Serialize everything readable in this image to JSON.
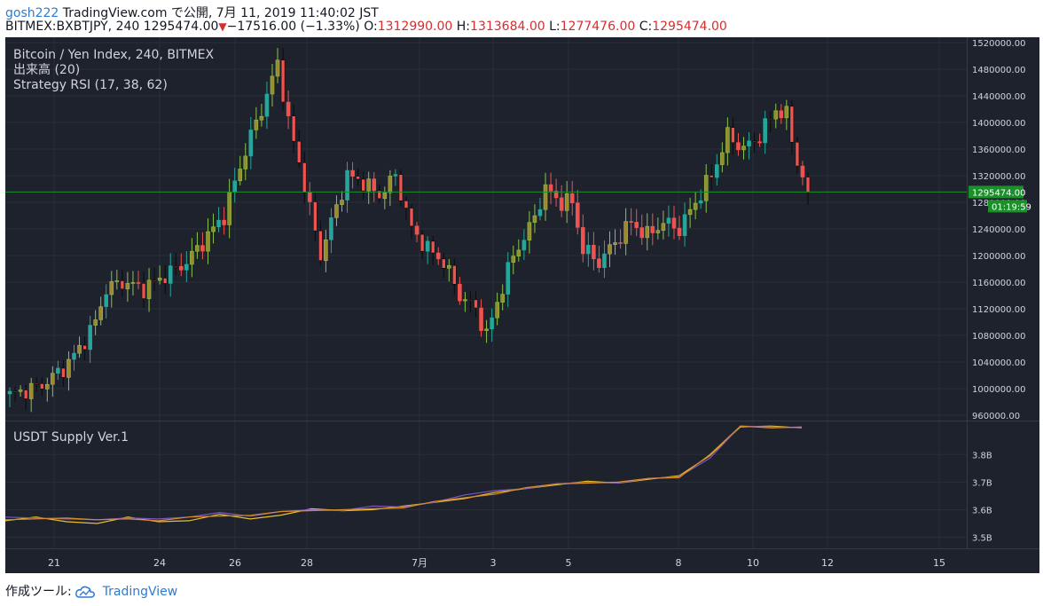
{
  "header": {
    "user": "gosh222",
    "publish_text": "TradingView.com で公開, 7月 11, 2019 11:40:02 JST",
    "symbol": "BITMEX:BXBTJPY, 240",
    "last": "1295474.00",
    "change": "−17516.00 (−1.33%)",
    "o_label": "O:",
    "o": "1312990.00",
    "h_label": "H:",
    "h": "1313684.00",
    "l_label": "L:",
    "l": "1277476.00",
    "c_label": "C:",
    "c": "1295474.00"
  },
  "legend": {
    "main": "Bitcoin / Yen Index, 240, BITMEX",
    "volume": "出来高 (20)",
    "strategy": "Strategy RSI (17, 38, 62)",
    "sub": "USDT Supply Ver.1"
  },
  "price_badge": "1295474.00",
  "countdown_badge": "01:19:59",
  "footer": {
    "made_with": "作成ツール:",
    "brand": "TradingView"
  },
  "colors": {
    "background": "#1e222d",
    "up": "#26a69a",
    "down": "#ef5350",
    "up_rsi": "#8bc34a",
    "grid": "#2a2e39",
    "axis_text": "#d1d4dc",
    "price_line": "#1b8f2a",
    "supply_1": "#e8c02e",
    "supply_2": "#7e57c2",
    "supply_3": "#d98b2b"
  },
  "chart_data": [
    {
      "type": "candlestick",
      "title": "Bitcoin / Yen Index, 240, BITMEX",
      "y_ticks": [
        960000,
        1000000,
        1040000,
        1080000,
        1120000,
        1160000,
        1200000,
        1240000,
        1280000,
        1320000,
        1360000,
        1400000,
        1440000,
        1480000,
        1520000
      ],
      "ylim": [
        952000,
        1528000
      ],
      "x_tick_labels": [
        "21",
        "24",
        "26",
        "28",
        "7月",
        "3",
        "5",
        "8",
        "10",
        "12",
        "15"
      ],
      "grid": true,
      "last_price": 1295474,
      "approx_close_path": [
        [
          0,
          990000
        ],
        [
          6,
          1005000
        ],
        [
          10,
          1030000
        ],
        [
          13,
          1060000
        ],
        [
          16,
          1100000
        ],
        [
          18,
          1150000
        ],
        [
          21,
          1160000
        ],
        [
          25,
          1150000
        ],
        [
          29,
          1170000
        ],
        [
          33,
          1190000
        ],
        [
          37,
          1230000
        ],
        [
          40,
          1260000
        ],
        [
          42,
          1310000
        ],
        [
          45,
          1380000
        ],
        [
          48,
          1440000
        ],
        [
          50,
          1490000
        ],
        [
          52,
          1400000
        ],
        [
          54,
          1340000
        ],
        [
          56,
          1270000
        ],
        [
          58,
          1200000
        ],
        [
          60,
          1250000
        ],
        [
          63,
          1320000
        ],
        [
          66,
          1310000
        ],
        [
          69,
          1290000
        ],
        [
          72,
          1320000
        ],
        [
          75,
          1240000
        ],
        [
          78,
          1210000
        ],
        [
          81,
          1190000
        ],
        [
          84,
          1140000
        ],
        [
          87,
          1120000
        ],
        [
          89,
          1080000
        ],
        [
          91,
          1130000
        ],
        [
          94,
          1200000
        ],
        [
          97,
          1240000
        ],
        [
          100,
          1300000
        ],
        [
          103,
          1280000
        ],
        [
          105,
          1280000
        ],
        [
          107,
          1210000
        ],
        [
          110,
          1190000
        ],
        [
          113,
          1220000
        ],
        [
          116,
          1250000
        ],
        [
          119,
          1230000
        ],
        [
          122,
          1250000
        ],
        [
          125,
          1240000
        ],
        [
          128,
          1280000
        ],
        [
          131,
          1320000
        ],
        [
          134,
          1380000
        ],
        [
          137,
          1360000
        ],
        [
          140,
          1380000
        ],
        [
          143,
          1420000
        ],
        [
          145,
          1410000
        ],
        [
          147,
          1340000
        ],
        [
          149,
          1295474
        ]
      ]
    },
    {
      "type": "line",
      "title": "USDT Supply Ver.1",
      "y_ticks": [
        3500000000,
        3600000000,
        3700000000,
        3800000000
      ],
      "y_tick_labels": [
        "3.5B",
        "3.6B",
        "3.7B",
        "3.8B"
      ],
      "ylim": [
        3460000000,
        3920000000
      ],
      "series": [
        {
          "values": [
            3.56,
            3.57,
            3.56,
            3.55,
            3.57,
            3.56,
            3.56,
            3.58,
            3.57,
            3.58,
            3.6,
            3.6,
            3.6,
            3.61,
            3.63,
            3.64,
            3.66,
            3.68,
            3.69,
            3.7,
            3.7,
            3.71,
            3.72,
            3.8,
            3.9,
            3.9,
            3.9
          ]
        },
        {
          "values": [
            3.57,
            3.57,
            3.57,
            3.56,
            3.57,
            3.57,
            3.57,
            3.59,
            3.58,
            3.59,
            3.6,
            3.6,
            3.61,
            3.61,
            3.63,
            3.65,
            3.67,
            3.68,
            3.69,
            3.7,
            3.7,
            3.71,
            3.72,
            3.79,
            3.9,
            3.9,
            3.9
          ]
        },
        {
          "values": [
            3.56,
            3.57,
            3.57,
            3.56,
            3.57,
            3.56,
            3.57,
            3.58,
            3.58,
            3.59,
            3.6,
            3.6,
            3.6,
            3.61,
            3.63,
            3.64,
            3.66,
            3.68,
            3.69,
            3.7,
            3.7,
            3.71,
            3.72,
            3.8,
            3.9,
            3.9,
            3.9
          ]
        }
      ]
    }
  ]
}
